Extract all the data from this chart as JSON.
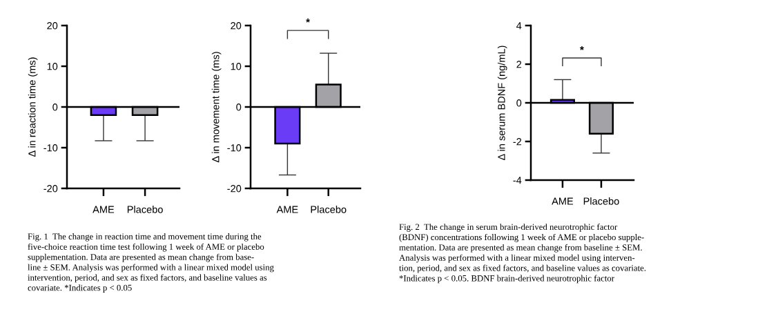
{
  "chart_data": [
    {
      "type": "bar",
      "categories": [
        "AME",
        "Placebo"
      ],
      "values": [
        -2.0,
        -2.0
      ],
      "colors": [
        "#6a3cf5",
        "#a3a3a7"
      ],
      "errors": [
        [
          -8.3,
          -2.0
        ],
        [
          -8.3,
          -2.0
        ]
      ],
      "ylabel": "Δ in reaction time (ms)",
      "ylim": [
        -20,
        20
      ],
      "yticks": [
        -20,
        -10,
        0,
        10,
        20
      ],
      "ref_lines": [
        {
          "axis": "y",
          "value": 0,
          "color": "#000000"
        }
      ],
      "legend": false,
      "annotations": [
        "Fig. 1  The change in reaction time and movement time during the\nfive-choice reaction time test following 1 week of AME or placebo\nsupplementation. Data are presented as mean change from base-\nline ± SEM. Analysis was performed with a linear mixed model using\nintervention, period, and sex as fixed factors, and baseline values as\ncovariate. *Indicates p < 0.05"
      ]
    },
    {
      "type": "bar",
      "categories": [
        "AME",
        "Placebo"
      ],
      "values": [
        -9.0,
        5.5
      ],
      "colors": [
        "#6a3cf5",
        "#a3a3a7"
      ],
      "errors": [
        [
          -16.7,
          -9.0
        ],
        [
          5.5,
          13.2
        ]
      ],
      "ylabel": "Δ in movement time (ms)",
      "ylim": [
        -20,
        20
      ],
      "yticks": [
        -20,
        -10,
        0,
        10,
        20
      ],
      "ref_lines": [
        {
          "axis": "y",
          "value": 0,
          "color": "#000000"
        }
      ],
      "legend": false,
      "annotations": [
        "*"
      ]
    },
    {
      "type": "bar",
      "categories": [
        "AME",
        "Placebo"
      ],
      "values": [
        0.15,
        -1.6
      ],
      "colors": [
        "#6a3cf5",
        "#a3a3a7"
      ],
      "errors": [
        [
          0.15,
          1.2
        ],
        [
          -2.6,
          -1.6
        ]
      ],
      "ylabel": "Δ in serum BDNF (ng/mL)",
      "ylim": [
        -4,
        4
      ],
      "yticks": [
        -4,
        -2,
        0,
        2,
        4
      ],
      "ref_lines": [
        {
          "axis": "y",
          "value": 0,
          "color": "#000000"
        }
      ],
      "legend": false,
      "annotations": [
        "*",
        "Fig. 2  The change in serum brain-derived neurotrophic factor\n(BDNF) concentrations following 1 week of AME or placebo supple-\nmentation. Data are presented as mean change from baseline ± SEM.\nAnalysis was performed with a linear mixed model using interven-\ntion, period, and sex as fixed factors, and baseline values as covariate.\n*Indicates p < 0.05. BDNF brain-derived neurotrophic factor"
      ]
    }
  ]
}
